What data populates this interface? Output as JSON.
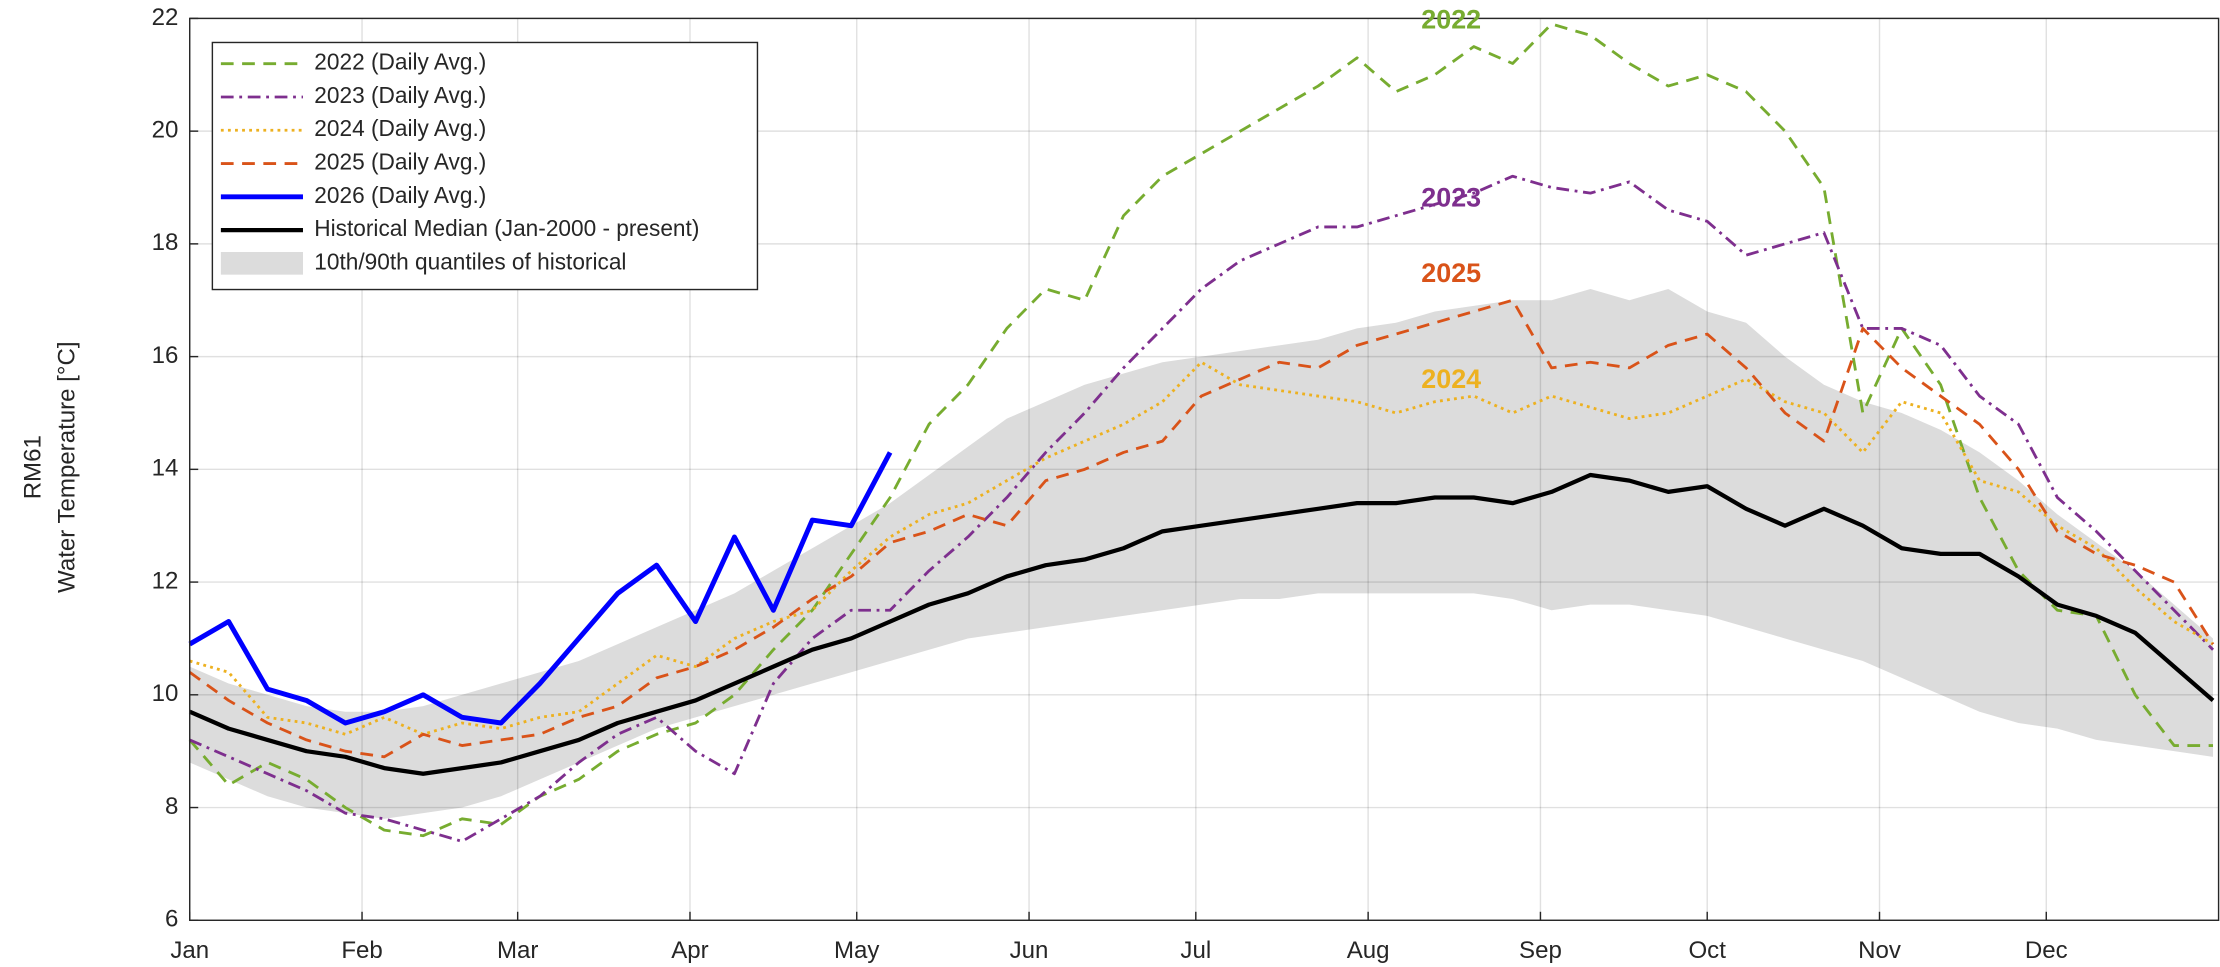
{
  "chart_data": {
    "type": "line",
    "ylabel": [
      "RM61",
      "Water Temperature [°C]"
    ],
    "x": [
      1,
      8,
      15,
      22,
      29,
      36,
      43,
      50,
      57,
      64,
      71,
      78,
      85,
      92,
      99,
      106,
      113,
      120,
      127,
      134,
      141,
      148,
      155,
      162,
      169,
      176,
      183,
      190,
      197,
      204,
      211,
      218,
      225,
      232,
      239,
      246,
      253,
      260,
      267,
      274,
      281,
      288,
      295,
      302,
      309,
      316,
      323,
      330,
      337,
      344,
      351,
      358,
      365
    ],
    "xlim": [
      1,
      366
    ],
    "xticks": [
      {
        "value": 1,
        "label": "Jan"
      },
      {
        "value": 32,
        "label": "Feb"
      },
      {
        "value": 60,
        "label": "Mar"
      },
      {
        "value": 91,
        "label": "Apr"
      },
      {
        "value": 121,
        "label": "May"
      },
      {
        "value": 152,
        "label": "Jun"
      },
      {
        "value": 182,
        "label": "Jul"
      },
      {
        "value": 213,
        "label": "Aug"
      },
      {
        "value": 244,
        "label": "Sep"
      },
      {
        "value": 274,
        "label": "Oct"
      },
      {
        "value": 305,
        "label": "Nov"
      },
      {
        "value": 335,
        "label": "Dec"
      }
    ],
    "ylim": [
      6,
      22
    ],
    "yticks": [
      6,
      8,
      10,
      12,
      14,
      16,
      18,
      20,
      22
    ],
    "grid": true,
    "legend": "upper left",
    "band": {
      "name": "10th/90th quantiles of historical",
      "color": "#dcdcdc",
      "upper": [
        10.5,
        10.2,
        10.0,
        9.8,
        9.7,
        9.7,
        9.8,
        10.0,
        10.2,
        10.4,
        10.6,
        10.9,
        11.2,
        11.5,
        11.8,
        12.2,
        12.6,
        13.0,
        13.4,
        13.9,
        14.4,
        14.9,
        15.2,
        15.5,
        15.7,
        15.9,
        16.0,
        16.1,
        16.2,
        16.3,
        16.5,
        16.6,
        16.8,
        16.9,
        17.0,
        17.0,
        17.2,
        17.0,
        17.2,
        16.8,
        16.6,
        16.0,
        15.5,
        15.2,
        15.0,
        14.7,
        14.3,
        13.8,
        13.2,
        12.7,
        12.2,
        11.6,
        11.0
      ],
      "lower": [
        8.8,
        8.5,
        8.2,
        8.0,
        7.9,
        7.8,
        7.9,
        8.0,
        8.2,
        8.5,
        8.8,
        9.1,
        9.4,
        9.6,
        9.8,
        10.0,
        10.2,
        10.4,
        10.6,
        10.8,
        11.0,
        11.1,
        11.2,
        11.3,
        11.4,
        11.5,
        11.6,
        11.7,
        11.7,
        11.8,
        11.8,
        11.8,
        11.8,
        11.8,
        11.7,
        11.5,
        11.6,
        11.6,
        11.5,
        11.4,
        11.2,
        11.0,
        10.8,
        10.6,
        10.3,
        10.0,
        9.7,
        9.5,
        9.4,
        9.2,
        9.1,
        9.0,
        8.9
      ]
    },
    "series": [
      {
        "name": "2022 (Daily Avg.)",
        "color": "#77ac30",
        "dash": "dashed",
        "values": [
          9.2,
          8.4,
          8.8,
          8.5,
          8.0,
          7.6,
          7.5,
          7.8,
          7.7,
          8.2,
          8.5,
          9.0,
          9.3,
          9.5,
          10.0,
          10.8,
          11.5,
          12.5,
          13.5,
          14.8,
          15.5,
          16.5,
          17.2,
          17.0,
          18.5,
          19.2,
          19.6,
          20.0,
          20.4,
          20.8,
          21.3,
          20.7,
          21.0,
          21.5,
          21.2,
          21.9,
          21.7,
          21.2,
          20.8,
          21.0,
          20.7,
          20.0,
          19.0,
          15.0,
          16.5,
          15.5,
          13.5,
          12.2,
          11.5,
          11.4,
          10.0,
          9.1,
          9.1
        ]
      },
      {
        "name": "2023 (Daily Avg.)",
        "color": "#7e2f8e",
        "dash": "dashdot",
        "values": [
          9.2,
          8.9,
          8.6,
          8.3,
          7.9,
          7.8,
          7.6,
          7.4,
          7.8,
          8.2,
          8.8,
          9.3,
          9.6,
          9.0,
          8.6,
          10.2,
          11.0,
          11.5,
          11.5,
          12.2,
          12.8,
          13.5,
          14.3,
          15.0,
          15.8,
          16.5,
          17.2,
          17.7,
          18.0,
          18.3,
          18.3,
          18.5,
          18.7,
          18.9,
          19.2,
          19.0,
          18.9,
          19.1,
          18.6,
          18.4,
          17.8,
          18.0,
          18.2,
          16.5,
          16.5,
          16.2,
          15.3,
          14.8,
          13.5,
          12.9,
          12.2,
          11.5,
          10.8
        ]
      },
      {
        "name": "2024 (Daily Avg.)",
        "color": "#edb120",
        "dash": "dotted",
        "values": [
          10.6,
          10.4,
          9.6,
          9.5,
          9.3,
          9.6,
          9.3,
          9.5,
          9.4,
          9.6,
          9.7,
          10.2,
          10.7,
          10.5,
          11.0,
          11.3,
          11.5,
          12.2,
          12.8,
          13.2,
          13.4,
          13.8,
          14.2,
          14.5,
          14.8,
          15.2,
          15.9,
          15.5,
          15.4,
          15.3,
          15.2,
          15.0,
          15.2,
          15.3,
          15.0,
          15.3,
          15.1,
          14.9,
          15.0,
          15.3,
          15.6,
          15.2,
          15.0,
          14.3,
          15.2,
          15.0,
          13.8,
          13.6,
          13.0,
          12.6,
          11.9,
          11.3,
          10.9
        ]
      },
      {
        "name": "2025 (Daily Avg.)",
        "color": "#d95319",
        "dash": "dashed",
        "values": [
          10.4,
          9.9,
          9.5,
          9.2,
          9.0,
          8.9,
          9.3,
          9.1,
          9.2,
          9.3,
          9.6,
          9.8,
          10.3,
          10.5,
          10.8,
          11.2,
          11.7,
          12.1,
          12.7,
          12.9,
          13.2,
          13.0,
          13.8,
          14.0,
          14.3,
          14.5,
          15.3,
          15.6,
          15.9,
          15.8,
          16.2,
          16.4,
          16.6,
          16.8,
          17.0,
          15.8,
          15.9,
          15.8,
          16.2,
          16.4,
          15.8,
          15.0,
          14.5,
          16.5,
          15.8,
          15.3,
          14.8,
          14.0,
          12.9,
          12.5,
          12.3,
          12.0,
          10.9
        ]
      },
      {
        "name": "2026 (Daily Avg.)",
        "color": "#0000ff",
        "dash": "solid",
        "width": 3.5,
        "values": [
          10.9,
          11.3,
          10.1,
          9.9,
          9.5,
          9.7,
          10.0,
          9.6,
          9.5,
          10.2,
          11.0,
          11.8,
          12.3,
          11.3,
          12.8,
          11.5,
          13.1,
          13.0,
          14.3,
          null,
          null,
          null,
          null,
          null,
          null,
          null,
          null,
          null,
          null,
          null,
          null,
          null,
          null,
          null,
          null,
          null,
          null,
          null,
          null,
          null,
          null,
          null,
          null,
          null,
          null,
          null,
          null,
          null,
          null,
          null,
          null,
          null,
          null
        ]
      },
      {
        "name": "Historical Median (Jan-2000 - present)",
        "color": "#000000",
        "dash": "solid",
        "width": 3,
        "values": [
          9.7,
          9.4,
          9.2,
          9.0,
          8.9,
          8.7,
          8.6,
          8.7,
          8.8,
          9.0,
          9.2,
          9.5,
          9.7,
          9.9,
          10.2,
          10.5,
          10.8,
          11.0,
          11.3,
          11.6,
          11.8,
          12.1,
          12.3,
          12.4,
          12.6,
          12.9,
          13.0,
          13.1,
          13.2,
          13.3,
          13.4,
          13.4,
          13.5,
          13.5,
          13.4,
          13.6,
          13.9,
          13.8,
          13.6,
          13.7,
          13.3,
          13.0,
          13.3,
          13.0,
          12.6,
          12.5,
          12.5,
          12.1,
          11.6,
          11.4,
          11.1,
          10.5,
          9.9
        ]
      }
    ],
    "annotations": [
      {
        "text": "2022",
        "color": "#77ac30"
      },
      {
        "text": "2023",
        "color": "#7e2f8e"
      },
      {
        "text": "2025",
        "color": "#d95319"
      },
      {
        "text": "2024",
        "color": "#edb120"
      }
    ]
  }
}
